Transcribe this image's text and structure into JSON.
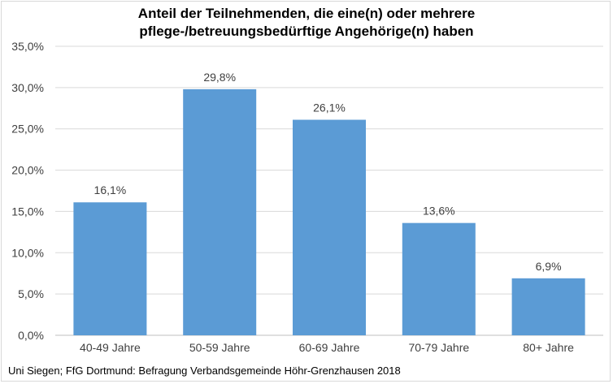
{
  "chart_data": {
    "type": "bar",
    "title_lines": [
      "Anteil der Teilnehmenden, die eine(n) oder mehrere",
      "pflege-/betreuungsbedürftige Angehörige(n) haben"
    ],
    "categories": [
      "40-49 Jahre",
      "50-59 Jahre",
      "60-69 Jahre",
      "70-79 Jahre",
      "80+ Jahre"
    ],
    "values": [
      16.1,
      29.8,
      26.1,
      13.6,
      6.9
    ],
    "value_labels": [
      "16,1%",
      "29,8%",
      "26,1%",
      "13,6%",
      "6,9%"
    ],
    "yticks": [
      0,
      5,
      10,
      15,
      20,
      25,
      30,
      35
    ],
    "ytick_labels": [
      "0,0%",
      "5,0%",
      "10,0%",
      "15,0%",
      "20,0%",
      "25,0%",
      "30,0%",
      "35,0%"
    ],
    "ylim": [
      0,
      35
    ],
    "bar_color": "#5b9bd5",
    "grid": true,
    "legend": "none"
  },
  "source": "Uni Siegen; FfG Dortmund: Befragung Verbandsgemeinde Höhr-Grenzhausen 2018"
}
